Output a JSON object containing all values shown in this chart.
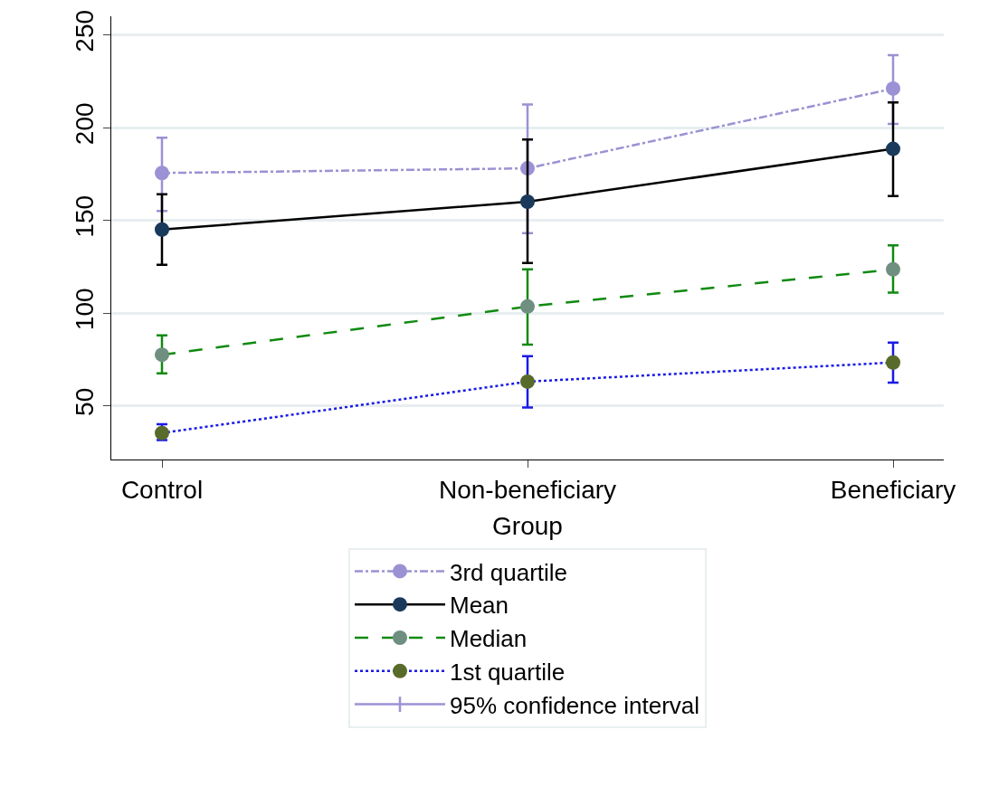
{
  "chart_data": {
    "type": "line",
    "xlabel": "Group",
    "categories": [
      "Control",
      "Non-beneficiary",
      "Beneficiary"
    ],
    "ylim": [
      21,
      260
    ],
    "yticks": [
      50,
      100,
      150,
      200,
      250
    ],
    "grid": "y",
    "legend": "bottom",
    "marker": "circle",
    "series": [
      {
        "name": "3rd quartile",
        "color": "#9a92d4",
        "colors": [
          "#9a92d4",
          "#9a92d4",
          "#9a92d4"
        ],
        "line_style": "dashdot",
        "values": [
          175.5,
          178,
          221
        ],
        "errors": [
          [
            155,
            194.5
          ],
          [
            143,
            212.5
          ],
          [
            202,
            239
          ]
        ]
      },
      {
        "name": "Mean",
        "color": "#000000",
        "colors": [
          "#1a3a5c",
          "#1a3a5c",
          "#1a3a5c"
        ],
        "line_style": "solid",
        "values": [
          145,
          160,
          188.5
        ],
        "errors": [
          [
            126,
            164
          ],
          [
            127,
            193.5
          ],
          [
            163,
            213.5
          ]
        ]
      },
      {
        "name": "Median",
        "color": "#108a10",
        "colors": [
          "#6f8f80",
          "#6f8f80",
          "#6f8f80"
        ],
        "line_style": "dashed",
        "values": [
          77.5,
          103.5,
          123.5
        ],
        "errors": [
          [
            67.5,
            88
          ],
          [
            83,
            123.5
          ],
          [
            111,
            136.5
          ]
        ]
      },
      {
        "name": "1st quartile",
        "color": "#1a1ae6",
        "colors": [
          "#586b2a",
          "#586b2a",
          "#586b2a"
        ],
        "line_style": "dotted",
        "values": [
          35.3,
          63,
          73.3
        ],
        "errors": [
          [
            31.5,
            40
          ],
          [
            49,
            76.7
          ],
          [
            62.5,
            84
          ]
        ]
      }
    ],
    "annotations": [
      "95% confidence interval"
    ]
  }
}
